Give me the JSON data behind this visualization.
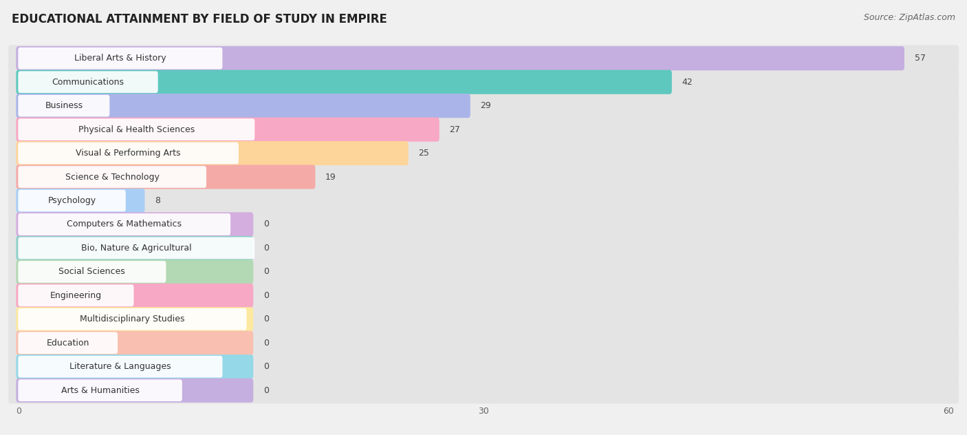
{
  "title": "EDUCATIONAL ATTAINMENT BY FIELD OF STUDY IN EMPIRE",
  "source": "Source: ZipAtlas.com",
  "categories": [
    "Liberal Arts & History",
    "Communications",
    "Business",
    "Physical & Health Sciences",
    "Visual & Performing Arts",
    "Science & Technology",
    "Psychology",
    "Computers & Mathematics",
    "Bio, Nature & Agricultural",
    "Social Sciences",
    "Engineering",
    "Multidisciplinary Studies",
    "Education",
    "Literature & Languages",
    "Arts & Humanities"
  ],
  "values": [
    57,
    42,
    29,
    27,
    25,
    19,
    8,
    0,
    0,
    0,
    0,
    0,
    0,
    0,
    0
  ],
  "bar_colors": [
    "#c5aee0",
    "#5ec8be",
    "#aab4e8",
    "#f7a8c4",
    "#fdd49a",
    "#f4aba8",
    "#a8cef5",
    "#d4aedf",
    "#8ed0ca",
    "#b2d9b4",
    "#f7a8c4",
    "#fde8a0",
    "#f9bfb0",
    "#95d8e8",
    "#c5aee0"
  ],
  "xlim": [
    0,
    60
  ],
  "xticks": [
    0,
    30,
    60
  ],
  "background_color": "#f0f0f0",
  "row_bg_color": "#e8e8e8",
  "bar_height": 0.72,
  "zero_bar_width": 15,
  "title_fontsize": 12,
  "source_fontsize": 9,
  "label_fontsize": 9,
  "value_fontsize": 9
}
